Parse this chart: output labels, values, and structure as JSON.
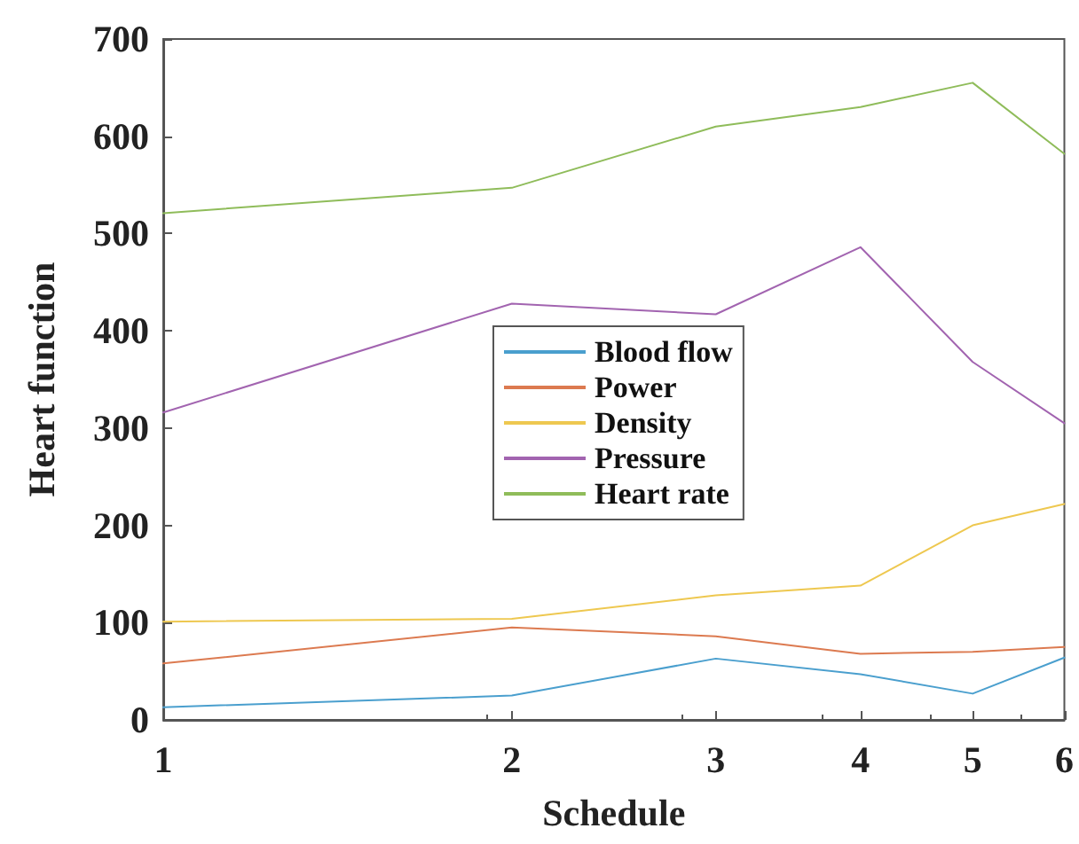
{
  "chart_data": {
    "type": "line",
    "xlabel": "Schedule",
    "ylabel": "Heart function",
    "x": [
      1,
      2,
      3,
      4,
      5,
      6
    ],
    "log": "x",
    "xlim": [
      1,
      6
    ],
    "xticks": [
      1,
      2,
      3,
      4,
      5,
      6
    ],
    "ylim": [
      0,
      700
    ],
    "yticks": [
      0,
      100,
      200,
      300,
      400,
      500,
      600,
      700
    ],
    "grid": false,
    "legend": "center",
    "marker": "none",
    "line_style": "solid",
    "series": [
      {
        "name": "Blood flow",
        "color": "#4a9fce",
        "values": [
          13,
          25,
          63,
          47,
          27,
          64
        ]
      },
      {
        "name": "Power",
        "color": "#dc7a50",
        "values": [
          58,
          95,
          86,
          68,
          70,
          75
        ]
      },
      {
        "name": "Density",
        "color": "#eec850",
        "values": [
          101,
          104,
          128,
          138,
          200,
          222
        ]
      },
      {
        "name": "Pressure",
        "color": "#a264b0",
        "values": [
          316,
          428,
          417,
          486,
          368,
          305
        ]
      },
      {
        "name": "Heart rate",
        "color": "#8fbc5a",
        "values": [
          521,
          547,
          610,
          630,
          655,
          582
        ]
      }
    ]
  }
}
